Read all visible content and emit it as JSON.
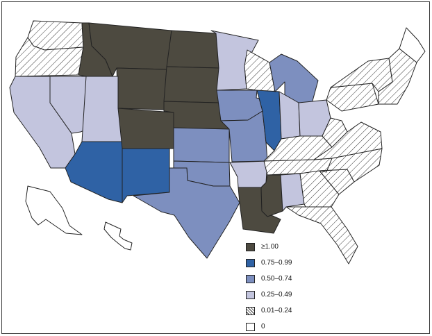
{
  "legend": {
    "items": [
      {
        "label": "≥1.00",
        "color": "#4d4a40",
        "pattern": "solid"
      },
      {
        "label": "0.75–0.99",
        "color": "#2f62a5",
        "pattern": "solid"
      },
      {
        "label": "0.50–0.74",
        "color": "#7d8fbf",
        "pattern": "solid"
      },
      {
        "label": "0.25–0.49",
        "color": "#c3c5de",
        "pattern": "solid"
      },
      {
        "label": "0.01–0.24",
        "color": "#ffffff",
        "pattern": "hatch"
      },
      {
        "label": "0",
        "color": "#ffffff",
        "pattern": "solid"
      }
    ]
  },
  "map": {
    "states": {
      "WA": 4,
      "OR": 4,
      "CA": 3,
      "NV": 3,
      "ID": 0,
      "MT": 0,
      "WY": 0,
      "UT": 3,
      "AZ": 1,
      "CO": 0,
      "NM": 1,
      "ND": 0,
      "SD": 0,
      "NE": 0,
      "KS": 2,
      "OK": 2,
      "TX": 2,
      "MN": 3,
      "IA": 2,
      "MO": 2,
      "AR": 3,
      "LA": 0,
      "WI": 4,
      "IL": 1,
      "MI": 2,
      "IN": 3,
      "OH": 3,
      "KY": 4,
      "TN": 4,
      "MS": 0,
      "AL": 3,
      "GA": 4,
      "FL": 4,
      "SC": 4,
      "NC": 4,
      "VA": 4,
      "WV": 4,
      "PA": 4,
      "NY": 4,
      "NE_REGION": 4,
      "ME": 5,
      "AK": 5,
      "HI": 5
    }
  }
}
